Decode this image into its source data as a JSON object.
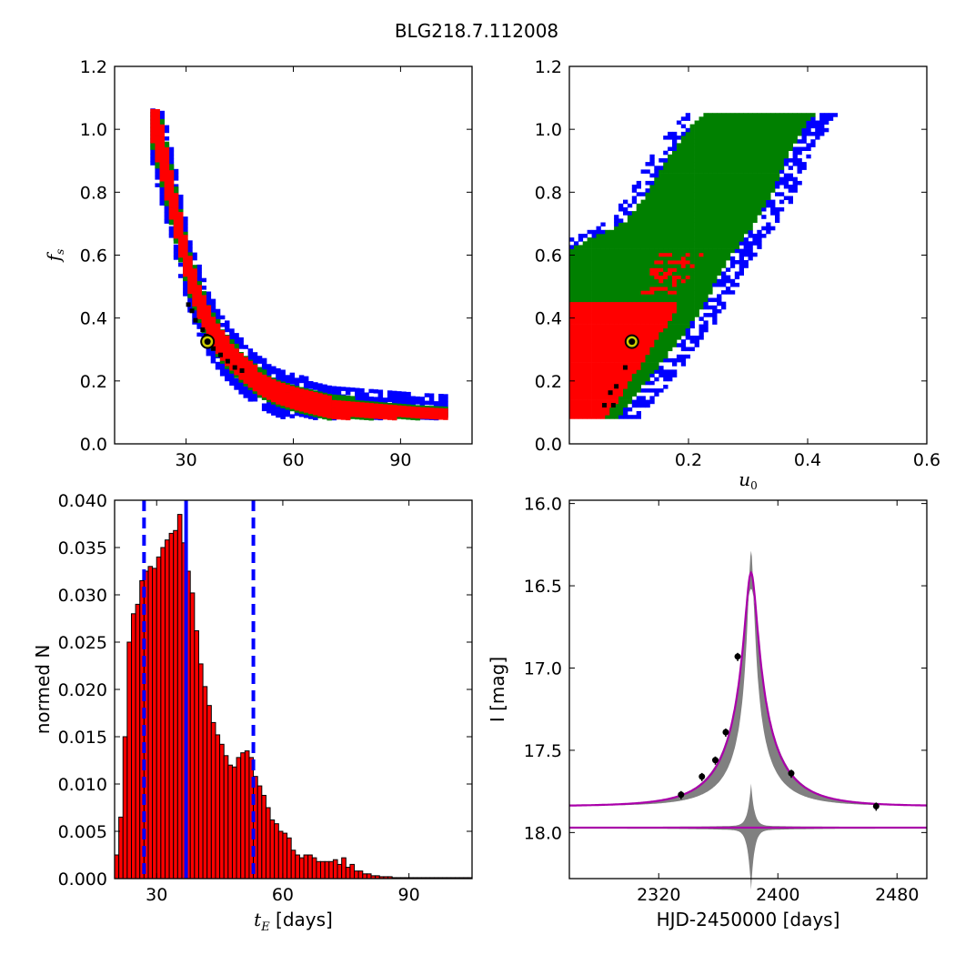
{
  "figure": {
    "title": "BLG218.7.112008"
  },
  "colors": {
    "chi2_1": "#000000",
    "chi2_2": "#ff0000",
    "chi2_3": "#008000",
    "chi2_4": "#0000ff",
    "best_fit_marker": "#cccc00",
    "hist_bar": "#ff0000",
    "hist_lines": "#0000ff",
    "model": "#aa00aa",
    "uncertainty_band": "#808080"
  },
  "chart_data": [
    {
      "id": "fs_vs_tE",
      "type": "heatmap",
      "title": "",
      "xlabel": "",
      "ylabel": "f_s",
      "xlim": [
        10,
        110
      ],
      "ylim": [
        0.0,
        1.2
      ],
      "xticks": [
        "30",
        "60",
        "90"
      ],
      "yticks": [
        "0.0",
        "0.2",
        "0.4",
        "0.6",
        "0.8",
        "1.0",
        "1.2"
      ],
      "best_fit": {
        "tE": 36,
        "fs": 0.325
      },
      "confidence_ridge": {
        "tE": [
          20,
          22,
          24,
          26,
          28,
          30,
          33,
          36,
          40,
          45,
          50,
          55,
          60,
          65,
          70,
          75,
          80,
          85,
          90,
          95,
          100,
          103
        ],
        "fs": [
          1.05,
          0.95,
          0.85,
          0.75,
          0.65,
          0.55,
          0.45,
          0.37,
          0.3,
          0.24,
          0.19,
          0.16,
          0.14,
          0.125,
          0.11,
          0.105,
          0.1,
          0.095,
          0.09,
          0.085,
          0.082,
          0.08
        ],
        "widths": [
          0.06,
          0.09,
          0.11,
          0.13,
          0.15
        ]
      }
    },
    {
      "id": "fs_vs_u0",
      "type": "heatmap",
      "title": "",
      "xlabel": "u_0",
      "ylabel": "",
      "xlim": [
        0.0,
        0.6
      ],
      "ylim": [
        0.0,
        1.2
      ],
      "xticks": [
        "0.2",
        "0.4",
        "0.6"
      ],
      "yticks": [
        "0.0",
        "0.2",
        "0.4",
        "0.6",
        "0.8",
        "1.0",
        "1.2"
      ],
      "best_fit": {
        "u0": 0.105,
        "fs": 0.325
      },
      "confidence_band": {
        "fs": [
          0.08,
          0.2,
          0.3,
          0.4,
          0.5,
          0.6,
          0.7,
          0.8,
          0.9,
          1.0,
          1.05
        ],
        "u0_min": [
          0.0,
          0.0,
          0.0,
          0.0,
          0.0,
          0.0,
          0.11,
          0.15,
          0.18,
          0.22,
          0.25
        ],
        "u0_max": [
          0.08,
          0.13,
          0.17,
          0.21,
          0.24,
          0.27,
          0.31,
          0.34,
          0.36,
          0.39,
          0.41
        ]
      }
    },
    {
      "id": "tE_histogram",
      "type": "bar",
      "title": "",
      "xlabel": "t_E [days]",
      "ylabel": "normed N",
      "xlim": [
        20,
        105
      ],
      "ylim": [
        0.0,
        0.04
      ],
      "xticks": [
        "30",
        "60",
        "90"
      ],
      "yticks": [
        "0.000",
        "0.005",
        "0.010",
        "0.015",
        "0.020",
        "0.025",
        "0.030",
        "0.035",
        "0.040"
      ],
      "bin_start": 20,
      "bin_width": 1,
      "values": [
        0.0025,
        0.0065,
        0.015,
        0.025,
        0.028,
        0.029,
        0.0315,
        0.0325,
        0.033,
        0.0328,
        0.034,
        0.035,
        0.0358,
        0.0365,
        0.0368,
        0.0385,
        0.0355,
        0.0325,
        0.0302,
        0.0262,
        0.0227,
        0.0203,
        0.0183,
        0.0165,
        0.0152,
        0.0142,
        0.013,
        0.012,
        0.0118,
        0.0128,
        0.0133,
        0.0135,
        0.0128,
        0.0108,
        0.0098,
        0.0088,
        0.0075,
        0.0062,
        0.0058,
        0.005,
        0.0048,
        0.0043,
        0.003,
        0.0025,
        0.0022,
        0.0025,
        0.0025,
        0.0022,
        0.0018,
        0.0018,
        0.0018,
        0.0018,
        0.002,
        0.0015,
        0.0022,
        0.0012,
        0.0015,
        0.0008,
        0.0008,
        0.0005,
        0.0005,
        0.0003,
        0.0003,
        0.0002,
        0.0002,
        0.0002,
        0.0001,
        0.0001,
        0.0001,
        0.0001,
        0.0001,
        0.0001,
        0.0001,
        0.0001,
        0.0001,
        0.0001,
        0.0001,
        0.0001,
        0.0001,
        0.0001,
        0.0001,
        0.0001,
        0.0001,
        0.0001,
        0.0001
      ],
      "vlines": {
        "solid": [
          37
        ],
        "dashed": [
          27,
          53
        ]
      }
    },
    {
      "id": "light_curve",
      "type": "line",
      "title": "",
      "xlabel": "HJD-2450000 [days]",
      "ylabel": "I [mag]",
      "xlim": [
        2260,
        2500
      ],
      "ylim": [
        18.28,
        15.98
      ],
      "xticks": [
        "2320",
        "2400",
        "2480"
      ],
      "yticks": [
        "16.0",
        "16.5",
        "17.0",
        "17.5",
        "18.0"
      ],
      "model": {
        "t0": 2382,
        "tE": 37,
        "u0": 0.105,
        "baseline": 17.84,
        "peak": 16.42
      },
      "residual_baseline": 17.97,
      "points": [
        {
          "x": 2335,
          "y": 17.77
        },
        {
          "x": 2349,
          "y": 17.66
        },
        {
          "x": 2358,
          "y": 17.56
        },
        {
          "x": 2365,
          "y": 17.39
        },
        {
          "x": 2373,
          "y": 16.93
        },
        {
          "x": 2409,
          "y": 17.64
        },
        {
          "x": 2466,
          "y": 17.84
        }
      ]
    }
  ]
}
